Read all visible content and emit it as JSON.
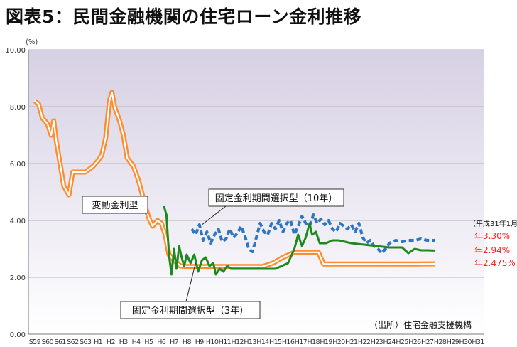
{
  "chart_data": {
    "type": "line",
    "title": "図表5：民間金融機関の住宅ローン金利推移",
    "yunit": "(%)",
    "ylim": [
      0,
      10
    ],
    "yticks": [
      "0.00",
      "2.00",
      "4.00",
      "6.00",
      "8.00",
      "10.00"
    ],
    "categories": [
      "S59",
      "S60",
      "S61",
      "S62",
      "S63",
      "H1",
      "H2",
      "H3",
      "H4",
      "H5",
      "H6",
      "H7",
      "H8",
      "H9",
      "H10",
      "H11",
      "H12",
      "H13",
      "H14",
      "H15",
      "H16",
      "H17",
      "H18",
      "H19",
      "H20",
      "H21",
      "H22",
      "H23",
      "H24",
      "H25",
      "H26",
      "H27",
      "H28",
      "H29",
      "H30",
      "H31"
    ],
    "series": [
      {
        "name": "変動金利型",
        "color": "#ff8c2e",
        "points": [
          [
            0,
            8.2
          ],
          [
            0.3,
            8.1
          ],
          [
            0.6,
            7.6
          ],
          [
            1.0,
            7.4
          ],
          [
            1.3,
            7.0
          ],
          [
            1.5,
            7.5
          ],
          [
            1.7,
            6.8
          ],
          [
            2.0,
            6.0
          ],
          [
            2.3,
            5.2
          ],
          [
            2.7,
            4.9
          ],
          [
            3.0,
            5.7
          ],
          [
            3.5,
            5.7
          ],
          [
            4.0,
            5.7
          ],
          [
            4.6,
            5.9
          ],
          [
            5.0,
            6.1
          ],
          [
            5.3,
            6.3
          ],
          [
            5.6,
            6.9
          ],
          [
            5.9,
            8.2
          ],
          [
            6.1,
            8.5
          ],
          [
            6.3,
            8.0
          ],
          [
            6.7,
            7.5
          ],
          [
            7.0,
            7.0
          ],
          [
            7.3,
            6.2
          ],
          [
            7.8,
            5.9
          ],
          [
            8.2,
            5.4
          ],
          [
            8.5,
            4.9
          ],
          [
            8.8,
            4.4
          ],
          [
            9.0,
            4.1
          ],
          [
            9.3,
            3.8
          ],
          [
            9.7,
            4.0
          ],
          [
            10.0,
            3.9
          ],
          [
            10.3,
            3.5
          ],
          [
            10.6,
            2.8
          ],
          [
            11.0,
            2.6
          ],
          [
            11.5,
            2.4
          ],
          [
            12,
            2.38
          ],
          [
            13,
            2.38
          ],
          [
            14,
            2.38
          ],
          [
            15,
            2.38
          ],
          [
            16,
            2.38
          ],
          [
            17,
            2.38
          ],
          [
            18,
            2.38
          ],
          [
            18.8,
            2.5
          ],
          [
            19.6,
            2.7
          ],
          [
            20.5,
            2.88
          ],
          [
            21.5,
            2.88
          ],
          [
            22.4,
            2.88
          ],
          [
            22.8,
            2.47
          ],
          [
            24,
            2.47
          ],
          [
            26,
            2.47
          ],
          [
            28,
            2.47
          ],
          [
            30,
            2.47
          ],
          [
            31.6,
            2.475
          ]
        ]
      },
      {
        "name": "固定金利期間選択型(10年)",
        "color": "#2e75c2",
        "points": [
          [
            12.4,
            3.7
          ],
          [
            12.7,
            3.5
          ],
          [
            13.0,
            3.85
          ],
          [
            13.3,
            3.3
          ],
          [
            13.6,
            3.6
          ],
          [
            13.9,
            3.2
          ],
          [
            14.2,
            3.5
          ],
          [
            14.5,
            3.7
          ],
          [
            14.8,
            3.25
          ],
          [
            15.1,
            3.35
          ],
          [
            15.4,
            3.7
          ],
          [
            15.7,
            3.4
          ],
          [
            16.0,
            3.55
          ],
          [
            16.3,
            3.8
          ],
          [
            16.6,
            3.45
          ],
          [
            16.9,
            3.0
          ],
          [
            17.2,
            2.9
          ],
          [
            17.5,
            3.4
          ],
          [
            17.8,
            3.9
          ],
          [
            18.1,
            3.6
          ],
          [
            18.4,
            3.5
          ],
          [
            18.7,
            3.9
          ],
          [
            19.0,
            3.7
          ],
          [
            19.3,
            4.0
          ],
          [
            19.6,
            3.6
          ],
          [
            19.9,
            3.9
          ],
          [
            20.2,
            4.0
          ],
          [
            20.5,
            3.5
          ],
          [
            20.8,
            3.8
          ],
          [
            21.1,
            4.15
          ],
          [
            21.4,
            3.9
          ],
          [
            21.7,
            3.8
          ],
          [
            22.0,
            4.2
          ],
          [
            22.3,
            3.9
          ],
          [
            22.6,
            4.05
          ],
          [
            22.9,
            3.85
          ],
          [
            23.2,
            4.0
          ],
          [
            23.5,
            3.7
          ],
          [
            23.8,
            3.6
          ],
          [
            24.1,
            3.9
          ],
          [
            24.4,
            3.8
          ],
          [
            24.7,
            3.7
          ],
          [
            25.0,
            3.85
          ],
          [
            25.3,
            3.6
          ],
          [
            25.6,
            3.9
          ],
          [
            25.9,
            3.4
          ],
          [
            26.2,
            3.2
          ],
          [
            26.5,
            3.3
          ],
          [
            26.8,
            3.1
          ],
          [
            27.1,
            3.0
          ],
          [
            27.4,
            2.85
          ],
          [
            27.7,
            3.0
          ],
          [
            28.0,
            3.2
          ],
          [
            28.5,
            3.3
          ],
          [
            29.0,
            3.25
          ],
          [
            29.5,
            3.3
          ],
          [
            30.0,
            3.3
          ],
          [
            30.5,
            3.35
          ],
          [
            31.0,
            3.3
          ],
          [
            31.6,
            3.3
          ]
        ]
      },
      {
        "name": "固定金利期間選択型(3年)",
        "color": "#1e8a1e",
        "points": [
          [
            10.2,
            4.5
          ],
          [
            10.4,
            4.2
          ],
          [
            10.6,
            2.8
          ],
          [
            10.8,
            2.1
          ],
          [
            11.0,
            3.0
          ],
          [
            11.2,
            2.3
          ],
          [
            11.4,
            3.1
          ],
          [
            11.6,
            2.7
          ],
          [
            11.8,
            2.4
          ],
          [
            12.0,
            2.8
          ],
          [
            12.3,
            2.5
          ],
          [
            12.6,
            2.8
          ],
          [
            12.9,
            2.2
          ],
          [
            13.2,
            2.6
          ],
          [
            13.5,
            2.7
          ],
          [
            13.8,
            2.4
          ],
          [
            14.1,
            2.5
          ],
          [
            14.3,
            2.1
          ],
          [
            14.6,
            2.3
          ],
          [
            14.9,
            2.2
          ],
          [
            15.2,
            2.4
          ],
          [
            15.5,
            2.3
          ],
          [
            15.8,
            2.3
          ],
          [
            16.2,
            2.3
          ],
          [
            17,
            2.3
          ],
          [
            18,
            2.3
          ],
          [
            19,
            2.3
          ],
          [
            19.5,
            2.4
          ],
          [
            20,
            2.5
          ],
          [
            20.5,
            3.0
          ],
          [
            20.8,
            3.5
          ],
          [
            21.1,
            3.1
          ],
          [
            21.4,
            3.4
          ],
          [
            21.7,
            3.9
          ],
          [
            21.9,
            3.5
          ],
          [
            22.2,
            3.6
          ],
          [
            22.5,
            3.2
          ],
          [
            23,
            3.2
          ],
          [
            23.5,
            3.3
          ],
          [
            24,
            3.3
          ],
          [
            25,
            3.2
          ],
          [
            26,
            3.15
          ],
          [
            27,
            3.1
          ],
          [
            28,
            3.05
          ],
          [
            29,
            3.05
          ],
          [
            29.5,
            2.85
          ],
          [
            30,
            3.0
          ],
          [
            30.5,
            2.95
          ],
          [
            31.0,
            2.95
          ],
          [
            31.6,
            2.94
          ]
        ]
      }
    ]
  },
  "labels": {
    "title": "図表5：民間金融機関の住宅ローン金利推移",
    "callout_variable": "変動金利型",
    "callout_fixed10": "固定金利期間選択型（10年）",
    "callout_fixed3": "固定金利期間選択型（3年）",
    "as_of": "（平成31年1月）",
    "end_fixed10": "年3.30%",
    "end_fixed3": "年2.94%",
    "end_variable": "年2.475%",
    "source": "（出所）住宅金融支援機構"
  },
  "colors": {
    "plot_top": "#d6d0e4",
    "plot_bottom": "#ffffff",
    "grid": "#b5b5b5",
    "end_label": "#ff2222"
  }
}
